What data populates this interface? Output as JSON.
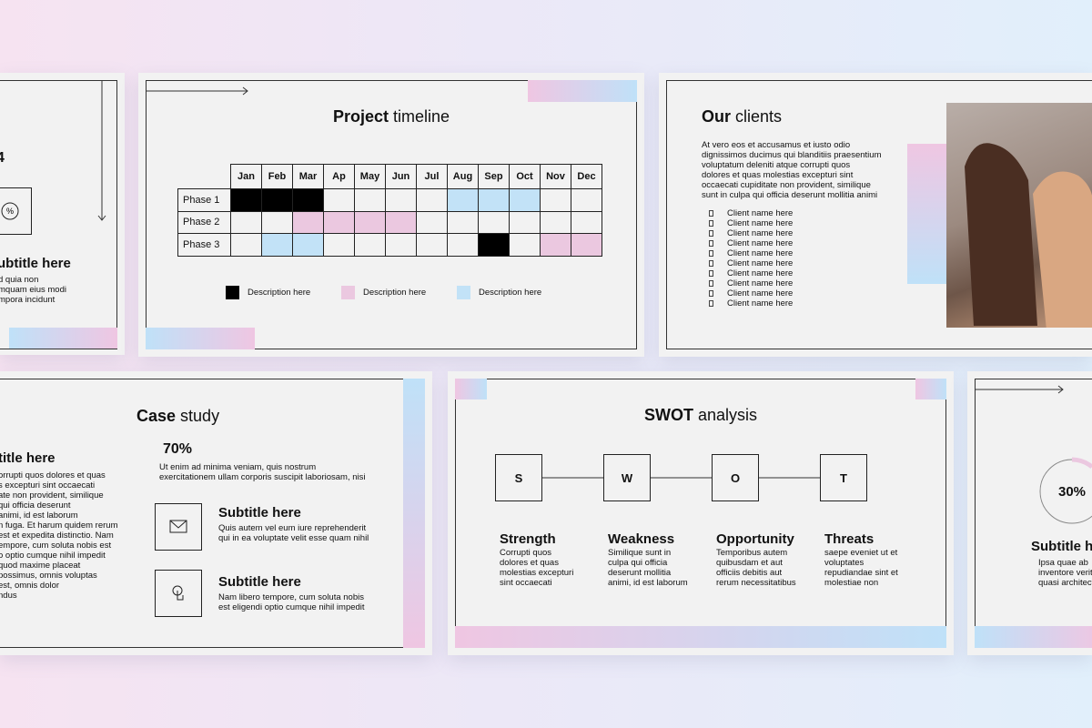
{
  "left_partial": {
    "number": "4",
    "subtitle": "ubtitle here",
    "lines": [
      "d quia non",
      "mquam eius modi",
      "mpora incidunt"
    ]
  },
  "timeline": {
    "title_bold": "Project",
    "title_rest": "timeline",
    "months": [
      "Jan",
      "Feb",
      "Mar",
      "Ap",
      "May",
      "Jun",
      "Jul",
      "Aug",
      "Sep",
      "Oct",
      "Nov",
      "Dec"
    ],
    "phases": [
      {
        "name": "Phase 1",
        "cells": [
          "#000000",
          "#000000",
          "#000000",
          null,
          null,
          null,
          null,
          "#c2e2f7",
          "#c2e2f7",
          "#c2e2f7",
          null,
          null
        ]
      },
      {
        "name": "Phase 2",
        "cells": [
          null,
          null,
          "#ebc8e0",
          "#ebc8e0",
          "#ebc8e0",
          "#ebc8e0",
          null,
          null,
          null,
          null,
          null,
          null
        ]
      },
      {
        "name": "Phase 3",
        "cells": [
          null,
          "#c2e2f7",
          "#c2e2f7",
          null,
          null,
          null,
          null,
          null,
          "#000000",
          null,
          "#ebc8e0",
          "#ebc8e0"
        ]
      }
    ],
    "legend": [
      {
        "label": "Description here",
        "color": "#000000"
      },
      {
        "label": "Description here",
        "color": "#ebc8e0"
      },
      {
        "label": "Description here",
        "color": "#c2e2f7"
      }
    ]
  },
  "clients": {
    "title_bold": "Our",
    "title_rest": "clients",
    "paragraph": [
      "At vero eos et accusamus et iusto odio",
      "dignissimos ducimus qui blanditiis praesentium",
      "voluptatum deleniti atque corrupti quos",
      "dolores et quas molestias excepturi sint",
      "occaecati cupiditate non provident, similique",
      "sunt in culpa qui officia deserunt mollitia animi"
    ],
    "list": [
      "Client name here",
      "Client name here",
      "Client name here",
      "Client name here",
      "Client name here",
      "Client name here",
      "Client name here",
      "Client name here",
      "Client name here",
      "Client name here"
    ]
  },
  "case_study": {
    "title_bold": "Case",
    "title_rest": "study",
    "left_subtitle": "title here",
    "left_lines": [
      "orrupti quos dolores et quas",
      "s excepturi sint occaecati",
      "ate non provident, similique",
      "qui officia deserunt",
      "animi, id est laborum",
      "n fuga. Et harum quidem rerum",
      "est et expedita distinctio. Nam",
      "empore, cum soluta nobis est",
      "o optio cumque nihil impedit",
      "quod maxime placeat",
      "possimus, omnis voluptas",
      "est, omnis dolor",
      "ndus"
    ],
    "stat": "70%",
    "stat_lines": [
      "Ut enim ad minima veniam, quis nostrum",
      "exercitationem ullam corporis suscipit laboriosam, nisi"
    ],
    "items": [
      {
        "subtitle": "Subtitle here",
        "lines": [
          "Quis autem vel eum iure reprehenderit",
          "qui in ea voluptate velit esse quam nihil"
        ]
      },
      {
        "subtitle": "Subtitle here",
        "lines": [
          "Nam libero tempore, cum soluta nobis",
          "est eligendi optio cumque nihil impedit"
        ]
      }
    ]
  },
  "swot": {
    "title_bold": "SWOT",
    "title_rest": "analysis",
    "items": [
      {
        "letter": "S",
        "title": "Strength",
        "lines": [
          "Corrupti quos",
          "dolores et quas",
          "molestias excepturi",
          "sint occaecati"
        ]
      },
      {
        "letter": "W",
        "title": "Weakness",
        "lines": [
          "Similique sunt in",
          "culpa qui officia",
          "deserunt mollitia",
          "animi, id est laborum"
        ]
      },
      {
        "letter": "O",
        "title": "Opportunity",
        "lines": [
          "Temporibus autem",
          "quibusdam et aut",
          "officiis debitis aut",
          "rerum necessitatibus"
        ]
      },
      {
        "letter": "T",
        "title": "Threats",
        "lines": [
          "saepe eveniet ut et",
          "voluptates",
          "repudiandae sint et",
          "molestiae non"
        ]
      }
    ]
  },
  "right_partial": {
    "percent": "30%",
    "subtitle": "Subtitle h",
    "lines": [
      "Ipsa quae ab",
      "inventore verita",
      "quasi architecto"
    ]
  }
}
